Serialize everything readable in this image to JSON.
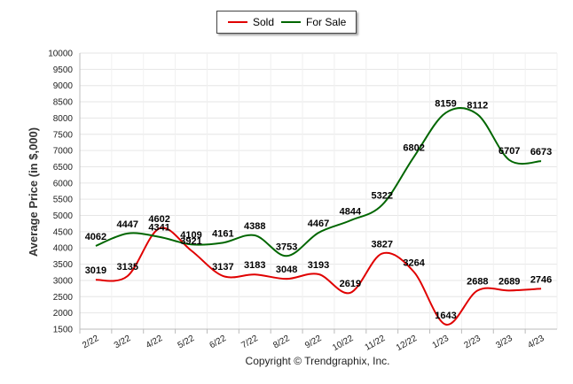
{
  "chart_data": {
    "type": "line",
    "categories": [
      "2/22",
      "3/22",
      "4/22",
      "5/22",
      "6/22",
      "7/22",
      "8/22",
      "9/22",
      "10/22",
      "11/22",
      "12/22",
      "1/23",
      "2/23",
      "3/23",
      "4/23"
    ],
    "series": [
      {
        "name": "Sold",
        "color": "#e00000",
        "values": [
          3019,
          3135,
          4602,
          3921,
          3137,
          3183,
          3048,
          3193,
          2619,
          3827,
          3264,
          1643,
          2688,
          2689,
          2746
        ]
      },
      {
        "name": "For Sale",
        "color": "#006600",
        "values": [
          4062,
          4447,
          4341,
          4109,
          4161,
          4388,
          3753,
          4467,
          4844,
          5322,
          6802,
          8159,
          8112,
          6707,
          6673
        ]
      }
    ],
    "ylabel": "Average Price (in $,000)",
    "xlabel": "",
    "ylim": [
      1500,
      10000
    ],
    "yticks": [
      1500,
      2000,
      2500,
      3000,
      3500,
      4000,
      4500,
      5000,
      5500,
      6000,
      6500,
      7000,
      7500,
      8000,
      8500,
      9000,
      9500,
      10000
    ],
    "grid": true,
    "legend_position": "top-center",
    "credit": "Copyright © Trendgraphix, Inc."
  }
}
